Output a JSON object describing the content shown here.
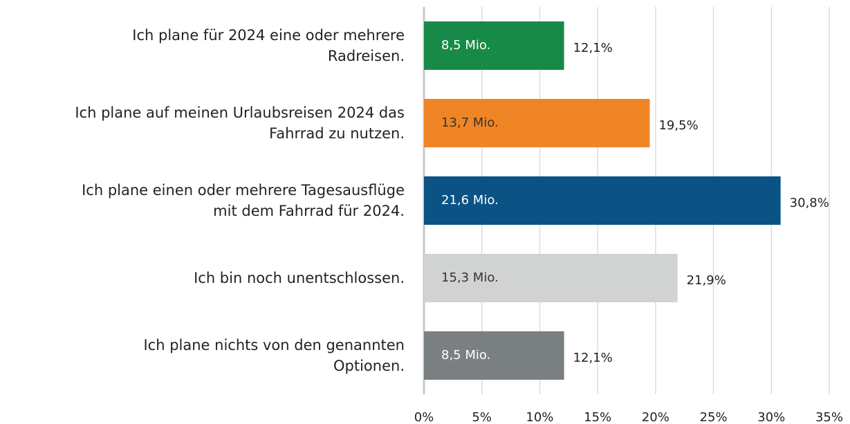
{
  "chart_data": {
    "type": "bar",
    "orientation": "horizontal",
    "categories": [
      "Ich plane für 2024 eine oder mehrere\nRadreisen.",
      "Ich plane auf meinen Urlaubsreisen 2024 das\nFahrrad zu nutzen.",
      "Ich plane einen oder mehrere Tagesausflüge\nmit dem Fahrrad für 2024.",
      "Ich bin noch unentschlossen.",
      "Ich plane nichts von den genannten\nOptionen."
    ],
    "values": [
      12.1,
      19.5,
      30.8,
      21.9,
      12.1
    ],
    "value_labels": [
      "12,1%",
      "19,5%",
      "30,8%",
      "21,9%",
      "12,1%"
    ],
    "inner_labels": [
      "8,5 Mio.",
      "13,7 Mio.",
      "21,6 Mio.",
      "15,3 Mio.",
      "8,5 Mio."
    ],
    "colors": [
      "#178a47",
      "#f08525",
      "#0b5384",
      "#d1d3d2",
      "#7a8081"
    ],
    "xlim": [
      0,
      35
    ],
    "xticks": [
      {
        "value": 0,
        "label": "0%"
      },
      {
        "value": 5,
        "label": "5%"
      },
      {
        "value": 10,
        "label": "10%"
      },
      {
        "value": 15,
        "label": "15%"
      },
      {
        "value": 20,
        "label": "20%"
      },
      {
        "value": 25,
        "label": "25%"
      },
      {
        "value": 30,
        "label": "30%"
      },
      {
        "value": 35,
        "label": "35%"
      }
    ],
    "grid": true
  }
}
